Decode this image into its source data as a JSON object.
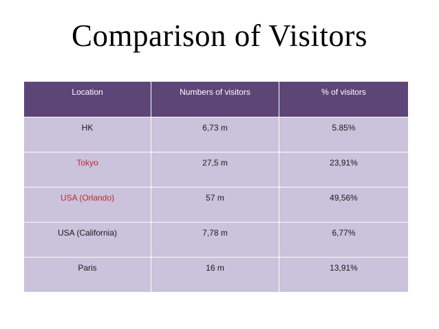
{
  "title": "Comparison of Visitors",
  "table": {
    "headers": [
      "Location",
      "Numbers of visitors",
      "% of visitors"
    ],
    "rows": [
      [
        "HK",
        "6,73 m",
        "5.85%"
      ],
      [
        "Tokyo",
        "27,5 m",
        "23,91%"
      ],
      [
        "USA (Orlando)",
        "57 m",
        "49,56%"
      ],
      [
        "USA (California)",
        "7,78 m",
        "6,77%"
      ],
      [
        "Paris",
        "16 m",
        "13,91%"
      ]
    ]
  },
  "colors": {
    "header_bg": "#5e4578",
    "row_bg": "#cbc2db",
    "highlight_text": "#c0272d"
  }
}
